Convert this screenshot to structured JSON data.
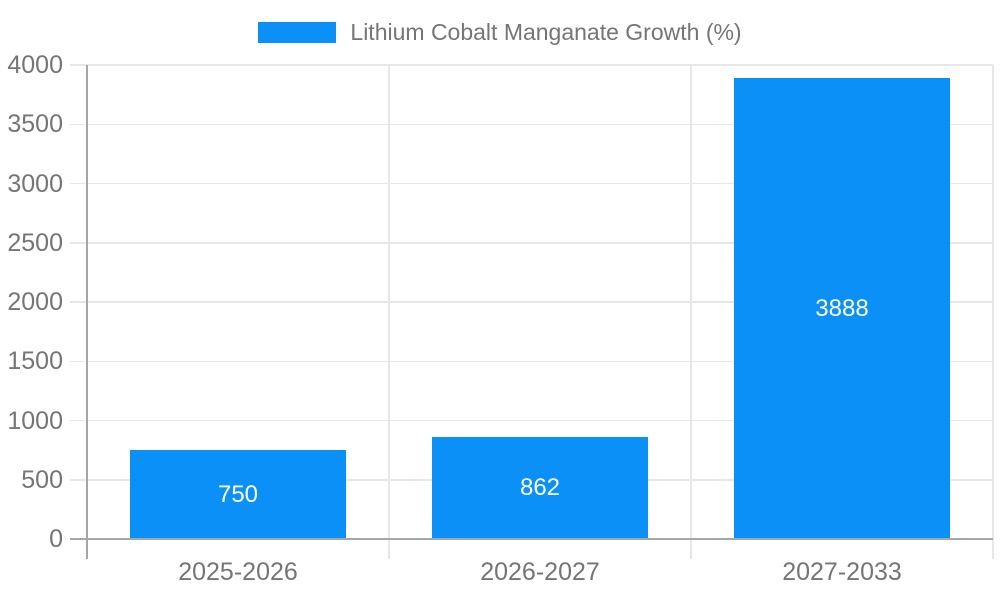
{
  "legend": {
    "label": "Lithium Cobalt Manganate Growth (%)"
  },
  "chart_data": {
    "type": "bar",
    "title": "Lithium Cobalt Manganate Growth (%)",
    "categories": [
      "2025-2026",
      "2026-2027",
      "2027-2033"
    ],
    "values": [
      750,
      862,
      3888
    ],
    "series": [
      {
        "name": "Lithium Cobalt Manganate Growth (%)",
        "values": [
          750,
          862,
          3888
        ]
      }
    ],
    "value_labels": [
      "750",
      "862",
      "3888"
    ],
    "xlabel": "",
    "ylabel": "",
    "ylim": [
      0,
      4000
    ],
    "yticks": [
      0,
      500,
      1000,
      1500,
      2000,
      2500,
      3000,
      3500,
      4000
    ],
    "grid": true,
    "legend_position": "top",
    "colors": {
      "bar": "#0b90f7",
      "value_label": "#ffffff",
      "axis_label": "#757575",
      "gridline": "#e7e7e7",
      "axis_line": "#a6a6a6",
      "background": "#ffffff"
    }
  }
}
